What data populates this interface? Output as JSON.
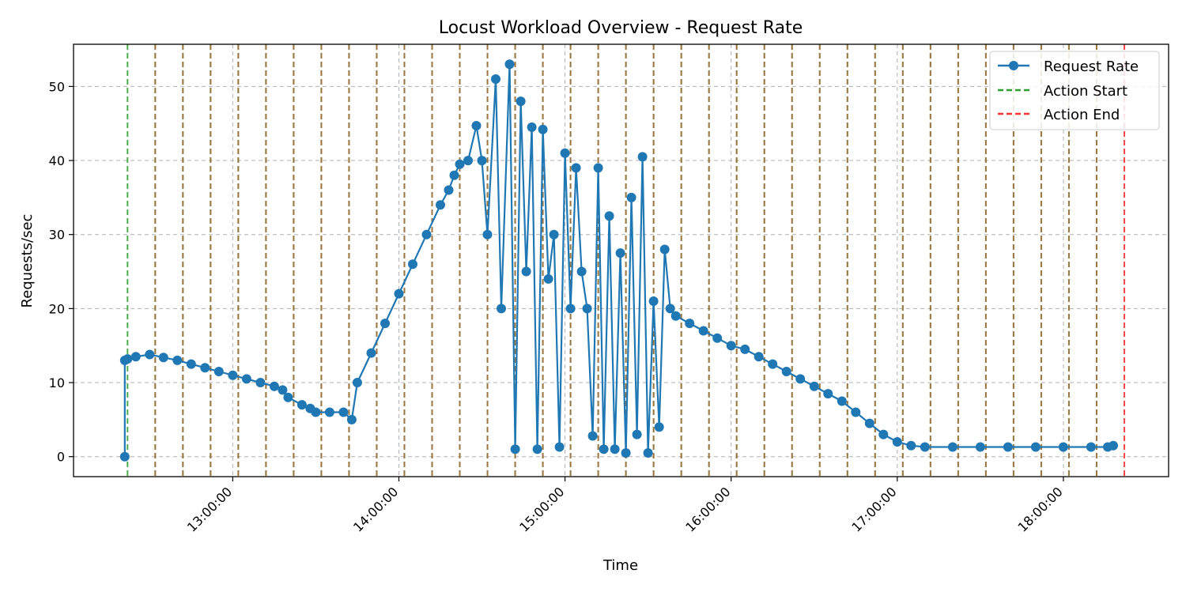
{
  "chart_data": {
    "type": "line",
    "title": "Locust Workload Overview - Request Rate",
    "xlabel": "Time",
    "ylabel": "Requests/sec",
    "x_ticks": [
      "13:00:00",
      "14:00:00",
      "15:00:00",
      "16:00:00",
      "17:00:00",
      "18:00:00"
    ],
    "y_ticks": [
      0,
      10,
      20,
      30,
      40,
      50
    ],
    "x_range": [
      "12:02:30",
      "18:38:00"
    ],
    "ylim": [
      -2.7,
      55.7
    ],
    "grid": true,
    "legend_position": "top-right",
    "legend": [
      {
        "label": "Request Rate",
        "style": "line-marker",
        "color": "#1f77b4"
      },
      {
        "label": "Action Start",
        "style": "dashed",
        "color": "#2ca02c"
      },
      {
        "label": "Action End",
        "style": "dashed",
        "color": "#ff3333"
      }
    ],
    "action_start": [
      "12:22",
      "12:32",
      "12:42",
      "12:52",
      "13:02",
      "13:12",
      "13:22",
      "13:32",
      "13:42",
      "13:52",
      "14:02",
      "14:12",
      "14:22",
      "14:32",
      "14:42",
      "14:52",
      "15:02",
      "15:12",
      "15:22",
      "15:32",
      "15:42",
      "15:52",
      "16:02",
      "16:12",
      "16:22",
      "16:32",
      "16:42",
      "16:52",
      "17:02",
      "17:12",
      "17:22",
      "17:32",
      "17:42",
      "17:52",
      "18:02",
      "18:12"
    ],
    "action_end": [
      "12:32",
      "12:42",
      "12:52",
      "13:02",
      "13:12",
      "13:22",
      "13:32",
      "13:42",
      "13:52",
      "14:02",
      "14:12",
      "14:22",
      "14:32",
      "14:42",
      "14:52",
      "15:02",
      "15:12",
      "15:22",
      "15:32",
      "15:42",
      "15:52",
      "16:02",
      "16:12",
      "16:22",
      "16:32",
      "16:42",
      "16:52",
      "17:02",
      "17:12",
      "17:22",
      "17:32",
      "17:42",
      "17:52",
      "18:02",
      "18:12",
      "18:22"
    ],
    "series": [
      {
        "name": "Request Rate",
        "color": "#1f77b4",
        "x": [
          "12:21",
          "12:21",
          "12:22",
          "12:25",
          "12:30",
          "12:35",
          "12:40",
          "12:45",
          "12:50",
          "12:55",
          "13:00",
          "13:05",
          "13:10",
          "13:15",
          "13:18",
          "13:20",
          "13:25",
          "13:28",
          "13:30",
          "13:35",
          "13:40",
          "13:43",
          "13:45",
          "13:50",
          "13:55",
          "14:00",
          "14:05",
          "14:10",
          "14:15",
          "14:18",
          "14:20",
          "14:22",
          "14:25",
          "14:28",
          "14:30",
          "14:32",
          "14:35",
          "14:37",
          "14:40",
          "14:42",
          "14:44",
          "14:46",
          "14:48",
          "14:50",
          "14:52",
          "14:54",
          "14:56",
          "14:58",
          "15:00",
          "15:02",
          "15:04",
          "15:06",
          "15:08",
          "15:10",
          "15:12",
          "15:14",
          "15:16",
          "15:18",
          "15:20",
          "15:22",
          "15:24",
          "15:26",
          "15:28",
          "15:30",
          "15:32",
          "15:34",
          "15:36",
          "15:38",
          "15:40",
          "15:45",
          "15:50",
          "15:55",
          "16:00",
          "16:05",
          "16:10",
          "16:15",
          "16:20",
          "16:25",
          "16:30",
          "16:35",
          "16:40",
          "16:45",
          "16:50",
          "16:55",
          "17:00",
          "17:05",
          "17:10",
          "17:20",
          "17:30",
          "17:40",
          "17:50",
          "18:00",
          "18:10",
          "18:16",
          "18:18"
        ],
        "y": [
          0,
          13.0,
          13.2,
          13.5,
          13.8,
          13.4,
          13.0,
          12.5,
          12.0,
          11.5,
          11.0,
          10.5,
          10.0,
          9.5,
          9.0,
          8.0,
          7.0,
          6.5,
          6.0,
          6.0,
          6.0,
          5.0,
          10.0,
          14.0,
          18.0,
          22.0,
          26.0,
          30.0,
          34.0,
          36.0,
          38.0,
          39.5,
          40.0,
          44.7,
          40.0,
          30.0,
          51.0,
          20.0,
          53.0,
          1.0,
          48.0,
          25.0,
          44.5,
          1.0,
          44.2,
          24.0,
          30.0,
          1.3,
          41.0,
          20.0,
          39.0,
          25.0,
          20.0,
          2.8,
          39.0,
          1.0,
          32.5,
          1.0,
          27.5,
          0.5,
          35.0,
          3.0,
          40.5,
          0.5,
          21.0,
          4.0,
          28.0,
          20.0,
          19.0,
          18.0,
          17.0,
          16.0,
          15.0,
          14.5,
          13.5,
          12.5,
          11.5,
          10.5,
          9.5,
          8.5,
          7.5,
          6.0,
          4.5,
          3.0,
          2.0,
          1.5,
          1.3,
          1.3,
          1.3,
          1.3,
          1.3,
          1.3,
          1.3,
          1.3,
          1.5
        ]
      }
    ]
  }
}
